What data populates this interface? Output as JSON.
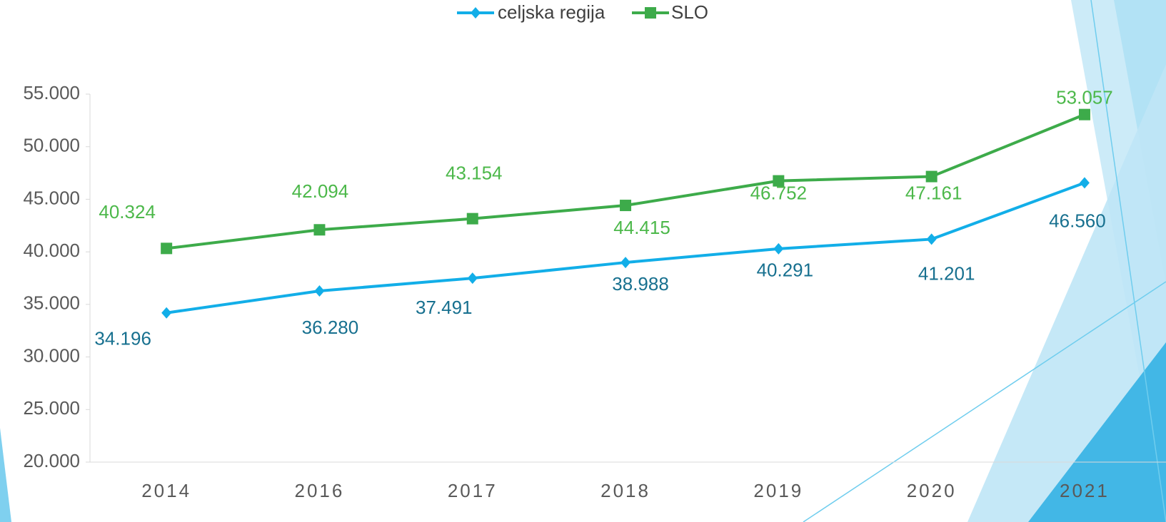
{
  "chart_data": {
    "type": "line",
    "categories": [
      "2014",
      "2016",
      "2017",
      "2018",
      "2019",
      "2020",
      "2021"
    ],
    "series": [
      {
        "name": "celjska regija",
        "color": "#12aee8",
        "label_color": "#17708f",
        "marker": "diamond",
        "values": [
          34196,
          36280,
          37491,
          38988,
          40291,
          41201,
          46560
        ],
        "value_labels": [
          "34.196",
          "36.280",
          "37.491",
          "38.988",
          "40.291",
          "41.201",
          "46.560"
        ]
      },
      {
        "name": "SLO",
        "color": "#3dab4a",
        "label_color": "#4cb84a",
        "marker": "square",
        "values": [
          40324,
          42094,
          43154,
          44415,
          46752,
          47161,
          53057
        ],
        "value_labels": [
          "40.324",
          "42.094",
          "43.154",
          "44.415",
          "46.752",
          "47.161",
          "53.057"
        ]
      }
    ],
    "ylim": [
      20000,
      55000
    ],
    "yticks": [
      {
        "value": 20000,
        "label": "20.000"
      },
      {
        "value": 25000,
        "label": "25.000"
      },
      {
        "value": 30000,
        "label": "30.000"
      },
      {
        "value": 35000,
        "label": "35.000"
      },
      {
        "value": 40000,
        "label": "40.000"
      },
      {
        "value": 45000,
        "label": "45.000"
      },
      {
        "value": 50000,
        "label": "50.000"
      },
      {
        "value": 55000,
        "label": "55.000"
      }
    ],
    "legend": "top"
  }
}
